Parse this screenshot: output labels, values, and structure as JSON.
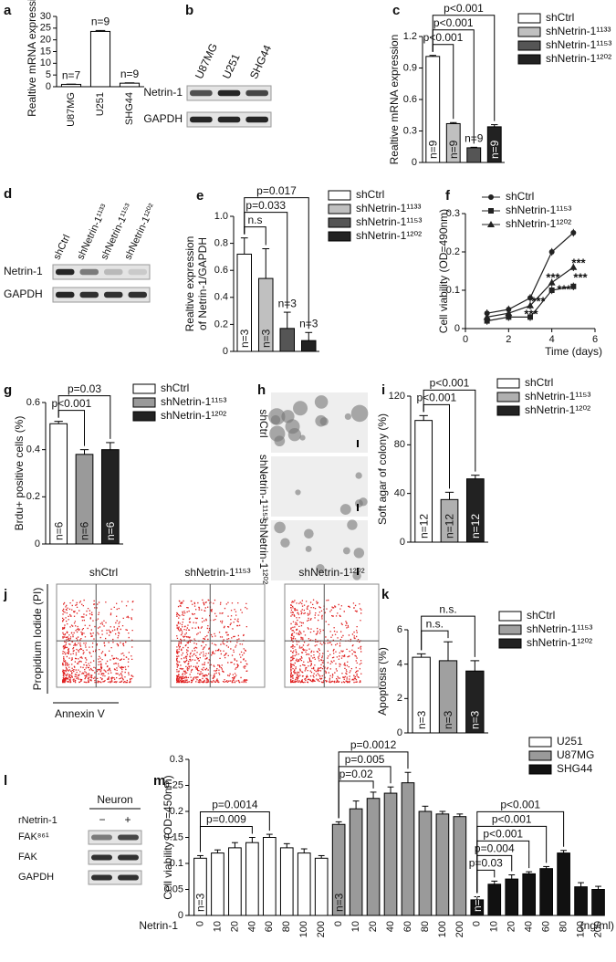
{
  "panels": [
    "a",
    "b",
    "c",
    "d",
    "e",
    "f",
    "g",
    "h",
    "i",
    "j",
    "k",
    "l",
    "m"
  ],
  "chart_data": [
    {
      "type": "bar",
      "categories": [
        "U87MG",
        "U251",
        "SHG44"
      ],
      "values": [
        1,
        23.6,
        1.5
      ],
      "errors": [
        0.1,
        0.4,
        0.15
      ],
      "colors": [
        "#ffffff",
        "#ffffff",
        "#ffffff"
      ],
      "n_labels": [
        "n=7",
        "n=9",
        "n=9"
      ],
      "ylabel": [
        "Realtive  mRNA expression"
      ],
      "ylim": [
        0,
        30
      ],
      "yticks": [
        0,
        5,
        10,
        15,
        20,
        25,
        30
      ],
      "legend": false,
      "brackets": []
    },
    {
      "type": "bar",
      "categories": [
        "shCtrl",
        "shNetrin-1¹¹³³",
        "shNetrin-1¹¹⁵³",
        "shNetrin-1¹²⁰²"
      ],
      "values": [
        1.01,
        0.37,
        0.14,
        0.34
      ],
      "errors": [
        0.01,
        0.01,
        0.005,
        0.02
      ],
      "colors": [
        "#ffffff",
        "#c0c0c0",
        "#555555",
        "#222222"
      ],
      "n_labels": [
        "n=9",
        "n=9",
        "n=9",
        "n=9"
      ],
      "ylabel": [
        "Realtive  mRNA expression"
      ],
      "ylim": [
        0,
        1.2
      ],
      "yticks": [
        0,
        0.3,
        0.6,
        0.9,
        1.2
      ],
      "legend": true,
      "brackets": [
        {
          "between": [
            "shCtrl",
            "shNetrin-1¹¹³³"
          ],
          "label": "p<0.001"
        },
        {
          "between": [
            "shCtrl",
            "shNetrin-1¹¹⁵³"
          ],
          "label": "p<0.001"
        },
        {
          "between": [
            "shCtrl",
            "shNetrin-1¹²⁰²"
          ],
          "label": "p<0.001"
        }
      ]
    },
    {
      "type": "bar",
      "categories": [
        "shCtrl",
        "shNetrin-1¹¹³³",
        "shNetrin-1¹¹⁵³",
        "shNetrin-1¹²⁰²"
      ],
      "values": [
        0.72,
        0.54,
        0.17,
        0.08
      ],
      "errors": [
        0.12,
        0.22,
        0.12,
        0.06
      ],
      "colors": [
        "#ffffff",
        "#c0c0c0",
        "#555555",
        "#222222"
      ],
      "n_labels": [
        "n=3",
        "n=3",
        "n=3",
        "n=3"
      ],
      "ylabel": [
        "Realtive  expression",
        "of Netrin-1/GAPDH"
      ],
      "ylim": [
        0,
        1
      ],
      "yticks": [
        0,
        0.2,
        0.4,
        0.6,
        0.8,
        {
          "value": 1,
          "label": "1.0"
        }
      ],
      "legend": true,
      "brackets": [
        {
          "between": [
            "shCtrl",
            "shNetrin-1¹¹³³"
          ],
          "label": "n.s"
        },
        {
          "between": [
            "shCtrl",
            "shNetrin-1¹¹⁵³"
          ],
          "label": "p=0.033"
        },
        {
          "between": [
            "shCtrl",
            "shNetrin-1¹²⁰²"
          ],
          "label": "p=0.017"
        }
      ]
    },
    {
      "type": "line",
      "x": [
        1,
        2,
        3,
        4,
        5
      ],
      "series": [
        {
          "name": "shCtrl",
          "color": "#222222",
          "marker": "circle",
          "values": [
            0.04,
            0.05,
            0.08,
            0.2,
            0.25
          ],
          "errors": [
            0.01,
            0.01,
            0.01,
            0.01,
            0.01
          ]
        },
        {
          "name": "shNetrin-1¹¹⁵³",
          "color": "#222222",
          "marker": "square",
          "values": [
            0.02,
            0.03,
            0.03,
            0.1,
            0.11
          ],
          "errors": [
            0.01,
            0.01,
            0.01,
            0.01,
            0.01
          ]
        },
        {
          "name": "shNetrin-1¹²⁰²",
          "color": "#222222",
          "marker": "triangle",
          "values": [
            0.03,
            0.04,
            0.06,
            0.12,
            0.16
          ],
          "errors": [
            0.01,
            0.01,
            0.01,
            0.01,
            0.01
          ]
        }
      ],
      "xlim": [
        0,
        6
      ],
      "xticks": [
        0,
        2,
        4,
        6
      ],
      "ylim": [
        0,
        0.3
      ],
      "yticks": [
        0,
        0.1,
        0.2,
        0.3
      ],
      "ylabel": [
        "Cell  viability (OD=490nm)"
      ],
      "xlabel": "Time (days)",
      "annotations": [
        "***",
        "***",
        "***",
        "***",
        "***",
        "***"
      ],
      "legend": true
    },
    {
      "type": "bar",
      "categories": [
        "shCtrl",
        "shNetrin-1¹¹⁵³",
        "shNetrin-1¹²⁰²"
      ],
      "values": [
        0.51,
        0.38,
        0.4
      ],
      "errors": [
        0.01,
        0.02,
        0.03
      ],
      "colors": [
        "#ffffff",
        "#9a9a9a",
        "#222222"
      ],
      "n_labels": [
        "n=6",
        "n=6",
        "n=6"
      ],
      "ylabel": [
        "Brdu+ positive cells (%)"
      ],
      "ylim": [
        0,
        0.6
      ],
      "yticks": [
        0,
        0.2,
        0.4,
        0.6
      ],
      "legend": true,
      "brackets": [
        {
          "between": [
            "shCtrl",
            "shNetrin-1¹¹⁵³"
          ],
          "label": "p<0.001"
        },
        {
          "between": [
            "shCtrl",
            "shNetrin-1¹²⁰²"
          ],
          "label": "p=0.03"
        }
      ]
    },
    {
      "type": "bar",
      "categories": [
        "shCtrl",
        "shNetrin-1¹¹⁵³",
        "shNetrin-1¹²⁰²"
      ],
      "values": [
        100,
        35,
        52
      ],
      "errors": [
        4,
        6,
        3
      ],
      "colors": [
        "#ffffff",
        "#b0b0b0",
        "#222222"
      ],
      "n_labels": [
        "n=12",
        "n=12",
        "n=12"
      ],
      "ylabel": [
        "Soft agar of colony (%)"
      ],
      "ylim": [
        0,
        120
      ],
      "yticks": [
        0,
        40,
        80,
        120
      ],
      "legend": true,
      "brackets": [
        {
          "between": [
            "shCtrl",
            "shNetrin-1¹¹⁵³"
          ],
          "label": "p<0.001"
        },
        {
          "between": [
            "shCtrl",
            "shNetrin-1¹²⁰²"
          ],
          "label": "p<0.001"
        }
      ]
    },
    {
      "type": "bar",
      "categories": [
        "shCtrl",
        "shNetrin-1¹¹⁵³",
        "shNetrin-1¹²⁰²"
      ],
      "values": [
        4.4,
        4.2,
        3.6
      ],
      "errors": [
        0.2,
        1.1,
        0.6
      ],
      "colors": [
        "#ffffff",
        "#a0a0a0",
        "#222222"
      ],
      "n_labels": [
        "n=3",
        "n=3",
        "n=3"
      ],
      "ylabel": [
        "Apoptosis (%)"
      ],
      "ylim": [
        0,
        6
      ],
      "yticks": [
        0,
        2,
        4,
        6
      ],
      "legend": true,
      "brackets": [
        {
          "between": [
            "shCtrl",
            "shNetrin-1¹¹⁵³"
          ],
          "label": "n.s."
        },
        {
          "between": [
            "shCtrl",
            "shNetrin-1¹²⁰²"
          ],
          "label": "n.s."
        }
      ]
    },
    {
      "type": "bar",
      "categories": [
        "0",
        "10",
        "20",
        "40",
        "60",
        "80",
        "100",
        "200"
      ],
      "series": [
        {
          "name": "U251",
          "color": "#ffffff",
          "n_label": "n=3",
          "values": [
            0.11,
            0.12,
            0.13,
            0.14,
            0.15,
            0.13,
            0.12,
            0.11
          ],
          "errors": [
            0.005,
            0.006,
            0.01,
            0.01,
            0.006,
            0.008,
            0.008,
            0.005
          ]
        },
        {
          "name": "U87MG",
          "color": "#9a9a9a",
          "n_label": "n=3",
          "values": [
            0.175,
            0.205,
            0.225,
            0.235,
            0.255,
            0.2,
            0.195,
            0.19
          ],
          "errors": [
            0.005,
            0.015,
            0.012,
            0.012,
            0.02,
            0.01,
            0.005,
            0.005
          ]
        },
        {
          "name": "SHG44",
          "color": "#111111",
          "n_label": "n=3",
          "values": [
            0.03,
            0.06,
            0.07,
            0.08,
            0.09,
            0.12,
            0.055,
            0.05
          ],
          "errors": [
            0.006,
            0.006,
            0.008,
            0.004,
            0.004,
            0.005,
            0.008,
            0.006
          ]
        }
      ],
      "ylabel": [
        "Cell  viability (OD=450nm)"
      ],
      "ylim": [
        0,
        0.3
      ],
      "yticks": [
        0,
        0.05,
        0.1,
        0.15,
        0.2,
        0.25,
        0.3
      ],
      "legend": true,
      "xlabel_prefix": "Netrin-1",
      "xlabel_suffix": "(ng/ml)",
      "brackets": [
        {
          "series": "U251",
          "between": [
            "0",
            "40"
          ],
          "label": "p=0.009"
        },
        {
          "series": "U251",
          "between": [
            "0",
            "60"
          ],
          "label": "p=0.0014"
        },
        {
          "series": "U87MG",
          "between": [
            "0",
            "20"
          ],
          "label": "p=0.02"
        },
        {
          "series": "U87MG",
          "between": [
            "0",
            "40"
          ],
          "label": "p=0.005"
        },
        {
          "series": "U87MG",
          "between": [
            "0",
            "60"
          ],
          "label": "p=0.0012"
        },
        {
          "series": "SHG44",
          "between": [
            "0",
            "10"
          ],
          "label": "p=0.03"
        },
        {
          "series": "SHG44",
          "between": [
            "0",
            "20"
          ],
          "label": "p=0.004"
        },
        {
          "series": "SHG44",
          "between": [
            "0",
            "40"
          ],
          "label": "p<0.001"
        },
        {
          "series": "SHG44",
          "between": [
            "0",
            "60"
          ],
          "label": "p<0.001"
        },
        {
          "series": "SHG44",
          "between": [
            "0",
            "80"
          ],
          "label": "p<0.001"
        }
      ]
    }
  ],
  "blot_b": {
    "columns": [
      "U87MG",
      "U251",
      "SHG44"
    ],
    "rows": [
      "Netrin-1",
      "GAPDH"
    ]
  },
  "blot_d": {
    "columns": [
      "shCtrl",
      "shNetrin-1¹¹³³",
      "shNetrin-1¹¹⁵³",
      "shNetrin-1¹²⁰²"
    ],
    "rows": [
      "Netrin-1",
      "GAPDH"
    ]
  },
  "colony_h": {
    "rows": [
      "shCtrl",
      "shNetrin-1¹¹⁵³",
      "shNetrin-1¹²⁰²"
    ]
  },
  "flow_j": {
    "titles": [
      "shCtrl",
      "shNetrin-1¹¹⁵³",
      "shNetrin-1¹²⁰²"
    ],
    "ylabel": "Propidium Iodide (PI)",
    "xlabel": "Annexin V"
  },
  "blot_l": {
    "header": "Neuron",
    "treatment": "rNetrin-1",
    "conditions": [
      "−",
      "+"
    ],
    "rows": [
      "FAK⁸⁶¹",
      "FAK",
      "GAPDH"
    ]
  }
}
